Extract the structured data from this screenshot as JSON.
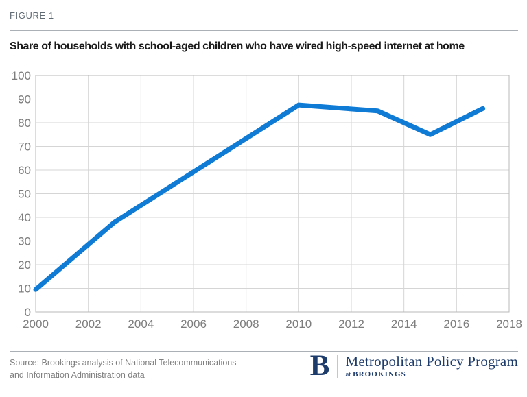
{
  "figure_label": "FIGURE 1",
  "title": "Share of households with school-aged children who have wired high-speed internet at home",
  "chart_data": {
    "type": "line",
    "title": "Share of households with school-aged children who have wired high-speed internet at home",
    "x": [
      2000,
      2003,
      2010,
      2013,
      2015,
      2017
    ],
    "values": [
      9.5,
      38,
      87.5,
      85,
      75,
      86
    ],
    "xlim": [
      2000,
      2018
    ],
    "ylim": [
      0,
      100
    ],
    "x_ticks": [
      2000,
      2002,
      2004,
      2006,
      2008,
      2010,
      2012,
      2014,
      2016,
      2018
    ],
    "y_ticks": [
      0,
      10,
      20,
      30,
      40,
      50,
      60,
      70,
      80,
      90,
      100
    ],
    "grid": true,
    "legend_position": "none",
    "xlabel": "",
    "ylabel": "",
    "line_color": "#0f7bd5",
    "line_width": 7,
    "grid_color": "#d5d5d5",
    "border_color": "#b9b9b9",
    "tick_label_color": "#7d7d7d"
  },
  "footer": {
    "source_line1": "Source: Brookings analysis of National Telecommunications",
    "source_line2": "and Information Administration data",
    "logo": {
      "b": "B",
      "program": "Metropolitan Policy Program",
      "at": "at ",
      "brookings": "BROOKINGS",
      "navy": "#1e3c6b"
    }
  }
}
